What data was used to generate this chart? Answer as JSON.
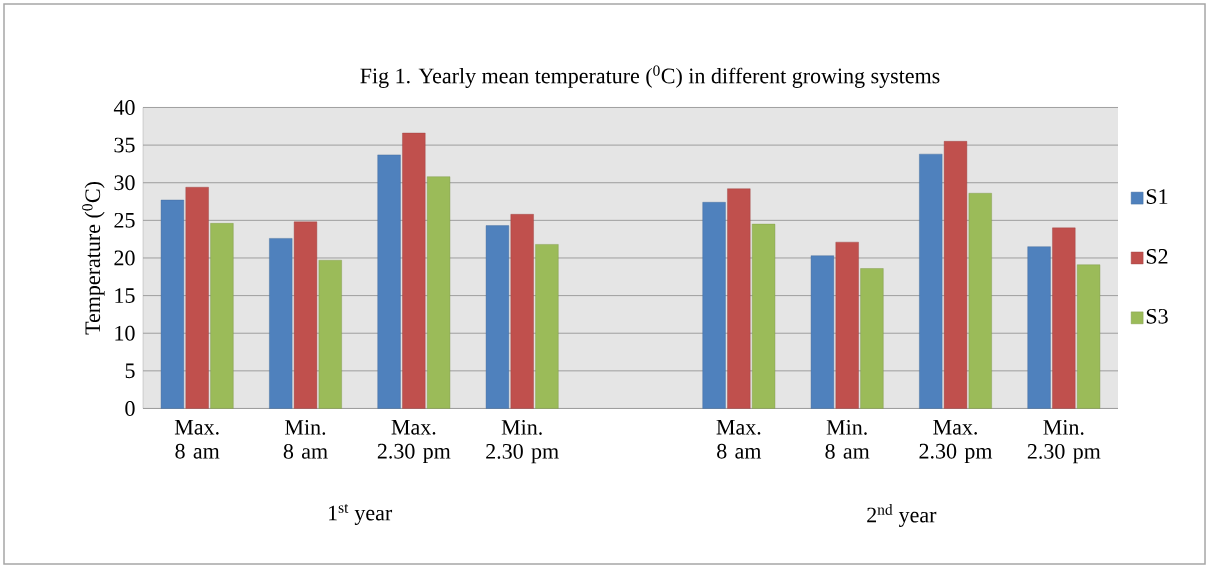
{
  "chart_data": {
    "type": "bar",
    "title": "Fig 1. Yearly mean temperature ($^{0}$C) in different growing systems",
    "ylabel": "Temperature ($^{0}$C)",
    "categories": [
      "Max. 8 am",
      "Min. 8 am",
      "Max. 2.30 pm",
      "Min. 2.30 pm",
      null,
      "Max. 8 am",
      "Min. 8 am",
      "Max. 2.30 pm",
      "Min. 2.30 pm"
    ],
    "series": [
      {
        "name": "S1",
        "color": "#4f81bd",
        "values": [
          27.7,
          22.6,
          33.7,
          24.3,
          null,
          27.4,
          20.3,
          33.8,
          21.5
        ]
      },
      {
        "name": "S2",
        "color": "#c0504d",
        "values": [
          29.4,
          24.8,
          36.6,
          25.8,
          null,
          29.2,
          22.1,
          35.5,
          24.0
        ]
      },
      {
        "name": "S3",
        "color": "#9bbb59",
        "values": [
          24.6,
          19.7,
          30.8,
          21.8,
          null,
          24.5,
          18.6,
          28.6,
          19.1
        ]
      }
    ],
    "ylim": [
      0,
      40
    ],
    "yticks": [
      0,
      5,
      10,
      15,
      20,
      25,
      30,
      35,
      40
    ],
    "grid": "y",
    "legend": "right",
    "annotations": [
      "1$^{st}$ year",
      "2$^{nd}$ year"
    ]
  }
}
